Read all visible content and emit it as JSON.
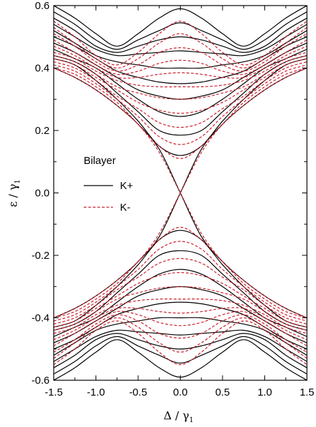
{
  "chart_data": {
    "type": "line",
    "title": "",
    "xlabel": "Δ / γ",
    "xlabel_sub": "1",
    "ylabel": "ε / γ",
    "ylabel_sub": "1",
    "xlim": [
      -1.5,
      1.5
    ],
    "ylim": [
      -0.6,
      0.6
    ],
    "xticks": [
      -1.5,
      -1.0,
      -0.5,
      0.0,
      0.5,
      1.0,
      1.5
    ],
    "xtick_labels": [
      "-1.5",
      "-1.0",
      "-0.5",
      "0.0",
      "0.5",
      "1.0",
      "1.5"
    ],
    "yticks": [
      -0.6,
      -0.4,
      -0.2,
      0.0,
      0.2,
      0.4,
      0.6
    ],
    "ytick_labels": [
      "-0.6",
      "-0.4",
      "-0.2",
      "0.0",
      "0.2",
      "0.4",
      "0.6"
    ],
    "grid": false,
    "legend": {
      "title": "Bilayer",
      "placement": "center-left",
      "entries": [
        "K+",
        "K-"
      ]
    },
    "x": [
      -1.5,
      -1.25,
      -1.0,
      -0.75,
      -0.5,
      -0.25,
      0.0,
      0.25,
      0.5,
      0.75,
      1.0,
      1.25,
      1.5
    ],
    "series": [
      {
        "label": "K+",
        "style": "solid",
        "color": "#000000",
        "y": [
          0.4,
          0.37,
          0.33,
          0.28,
          0.22,
          0.14,
          0.0,
          -0.14,
          -0.22,
          -0.28,
          -0.33,
          -0.37,
          -0.4
        ]
      },
      {
        "label": "K+",
        "style": "solid",
        "color": "#000000",
        "y": [
          -0.4,
          -0.37,
          -0.33,
          -0.28,
          -0.22,
          -0.14,
          0.0,
          0.14,
          0.22,
          0.28,
          0.33,
          0.37,
          0.4
        ]
      },
      {
        "label": "K-",
        "style": "dashed",
        "color": "#cc1f2d",
        "y": [
          0.4,
          0.37,
          0.33,
          0.28,
          0.22,
          0.13,
          0.0,
          -0.13,
          -0.22,
          -0.28,
          -0.33,
          -0.37,
          -0.4
        ]
      },
      {
        "label": "K-",
        "style": "dashed",
        "color": "#cc1f2d",
        "y": [
          -0.4,
          -0.37,
          -0.33,
          -0.28,
          -0.22,
          -0.13,
          0.0,
          0.13,
          0.22,
          0.28,
          0.33,
          0.37,
          0.4
        ]
      },
      {
        "label": "K+",
        "style": "solid",
        "color": "#000000",
        "y": [
          0.43,
          0.41,
          0.36,
          0.3,
          0.23,
          0.15,
          0.12,
          0.15,
          0.23,
          0.3,
          0.36,
          0.41,
          0.43
        ]
      },
      {
        "label": "K+",
        "style": "solid",
        "color": "#000000",
        "y": [
          0.44,
          0.42,
          0.38,
          0.32,
          0.26,
          0.2,
          0.185,
          0.2,
          0.26,
          0.32,
          0.38,
          0.42,
          0.44
        ]
      },
      {
        "label": "K+",
        "style": "solid",
        "color": "#000000",
        "y": [
          0.46,
          0.43,
          0.4,
          0.35,
          0.3,
          0.26,
          0.245,
          0.26,
          0.3,
          0.35,
          0.4,
          0.43,
          0.46
        ]
      },
      {
        "label": "K+",
        "style": "solid",
        "color": "#000000",
        "y": [
          0.48,
          0.45,
          0.41,
          0.37,
          0.33,
          0.31,
          0.3,
          0.31,
          0.33,
          0.37,
          0.41,
          0.45,
          0.48
        ]
      },
      {
        "label": "K+",
        "style": "solid",
        "color": "#000000",
        "y": [
          0.5,
          0.47,
          0.43,
          0.39,
          0.37,
          0.355,
          0.35,
          0.355,
          0.37,
          0.39,
          0.43,
          0.47,
          0.5
        ]
      },
      {
        "label": "K+",
        "style": "solid",
        "color": "#000000",
        "y": [
          0.52,
          0.48,
          0.44,
          0.42,
          0.41,
          0.4,
          0.4,
          0.4,
          0.41,
          0.42,
          0.44,
          0.48,
          0.52
        ]
      },
      {
        "label": "K+",
        "style": "solid",
        "color": "#000000",
        "y": [
          0.54,
          0.5,
          0.46,
          0.44,
          0.445,
          0.45,
          0.455,
          0.45,
          0.445,
          0.44,
          0.46,
          0.5,
          0.54
        ]
      },
      {
        "label": "K+",
        "style": "solid",
        "color": "#000000",
        "y": [
          0.56,
          0.52,
          0.47,
          0.45,
          0.47,
          0.49,
          0.5,
          0.49,
          0.47,
          0.45,
          0.47,
          0.52,
          0.56
        ]
      },
      {
        "label": "K+",
        "style": "solid",
        "color": "#000000",
        "y": [
          0.58,
          0.54,
          0.49,
          0.46,
          0.49,
          0.52,
          0.545,
          0.52,
          0.49,
          0.46,
          0.49,
          0.54,
          0.58
        ]
      },
      {
        "label": "K+",
        "style": "solid",
        "color": "#000000",
        "y": [
          0.6,
          0.56,
          0.51,
          0.47,
          0.51,
          0.56,
          0.59,
          0.56,
          0.51,
          0.47,
          0.51,
          0.56,
          0.6
        ]
      },
      {
        "label": "K+",
        "style": "solid",
        "color": "#000000",
        "y": [
          -0.43,
          -0.41,
          -0.36,
          -0.3,
          -0.23,
          -0.15,
          -0.12,
          -0.15,
          -0.23,
          -0.3,
          -0.36,
          -0.41,
          -0.43
        ]
      },
      {
        "label": "K+",
        "style": "solid",
        "color": "#000000",
        "y": [
          -0.44,
          -0.42,
          -0.38,
          -0.32,
          -0.26,
          -0.2,
          -0.185,
          -0.2,
          -0.26,
          -0.32,
          -0.38,
          -0.42,
          -0.44
        ]
      },
      {
        "label": "K+",
        "style": "solid",
        "color": "#000000",
        "y": [
          -0.46,
          -0.43,
          -0.4,
          -0.35,
          -0.3,
          -0.26,
          -0.245,
          -0.26,
          -0.3,
          -0.35,
          -0.4,
          -0.43,
          -0.46
        ]
      },
      {
        "label": "K+",
        "style": "solid",
        "color": "#000000",
        "y": [
          -0.48,
          -0.45,
          -0.41,
          -0.37,
          -0.33,
          -0.31,
          -0.3,
          -0.31,
          -0.33,
          -0.37,
          -0.41,
          -0.45,
          -0.48
        ]
      },
      {
        "label": "K+",
        "style": "solid",
        "color": "#000000",
        "y": [
          -0.5,
          -0.47,
          -0.43,
          -0.39,
          -0.37,
          -0.355,
          -0.35,
          -0.355,
          -0.37,
          -0.39,
          -0.43,
          -0.47,
          -0.5
        ]
      },
      {
        "label": "K+",
        "style": "solid",
        "color": "#000000",
        "y": [
          -0.52,
          -0.48,
          -0.44,
          -0.42,
          -0.41,
          -0.4,
          -0.4,
          -0.4,
          -0.41,
          -0.42,
          -0.44,
          -0.48,
          -0.52
        ]
      },
      {
        "label": "K+",
        "style": "solid",
        "color": "#000000",
        "y": [
          -0.54,
          -0.5,
          -0.46,
          -0.44,
          -0.445,
          -0.45,
          -0.455,
          -0.45,
          -0.445,
          -0.44,
          -0.46,
          -0.5,
          -0.54
        ]
      },
      {
        "label": "K+",
        "style": "solid",
        "color": "#000000",
        "y": [
          -0.56,
          -0.52,
          -0.47,
          -0.45,
          -0.47,
          -0.49,
          -0.5,
          -0.49,
          -0.47,
          -0.45,
          -0.47,
          -0.52,
          -0.56
        ]
      },
      {
        "label": "K+",
        "style": "solid",
        "color": "#000000",
        "y": [
          -0.58,
          -0.54,
          -0.49,
          -0.46,
          -0.49,
          -0.52,
          -0.545,
          -0.52,
          -0.49,
          -0.46,
          -0.49,
          -0.54,
          -0.58
        ]
      },
      {
        "label": "K+",
        "style": "solid",
        "color": "#000000",
        "y": [
          -0.6,
          -0.56,
          -0.51,
          -0.47,
          -0.51,
          -0.56,
          -0.59,
          -0.56,
          -0.51,
          -0.47,
          -0.51,
          -0.56,
          -0.6
        ]
      },
      {
        "label": "K-",
        "style": "dashed",
        "color": "#cc1f2d",
        "y": [
          0.4,
          0.38,
          0.34,
          0.29,
          0.22,
          0.15,
          0.11,
          0.15,
          0.22,
          0.29,
          0.34,
          0.38,
          0.4
        ]
      },
      {
        "label": "K-",
        "style": "dashed",
        "color": "#cc1f2d",
        "y": [
          0.41,
          0.39,
          0.35,
          0.3,
          0.245,
          0.18,
          0.155,
          0.18,
          0.245,
          0.3,
          0.35,
          0.39,
          0.41
        ]
      },
      {
        "label": "K-",
        "style": "dashed",
        "color": "#cc1f2d",
        "y": [
          0.42,
          0.4,
          0.36,
          0.31,
          0.27,
          0.225,
          0.21,
          0.225,
          0.27,
          0.31,
          0.36,
          0.4,
          0.42
        ]
      },
      {
        "label": "K-",
        "style": "dashed",
        "color": "#cc1f2d",
        "y": [
          0.43,
          0.41,
          0.37,
          0.33,
          0.29,
          0.265,
          0.255,
          0.265,
          0.29,
          0.33,
          0.37,
          0.41,
          0.43
        ]
      },
      {
        "label": "K-",
        "style": "dashed",
        "color": "#cc1f2d",
        "y": [
          0.44,
          0.42,
          0.38,
          0.34,
          0.32,
          0.305,
          0.3,
          0.305,
          0.32,
          0.34,
          0.38,
          0.42,
          0.44
        ]
      },
      {
        "label": "K-",
        "style": "dashed",
        "color": "#cc1f2d",
        "y": [
          0.45,
          0.43,
          0.39,
          0.36,
          0.345,
          0.34,
          0.34,
          0.34,
          0.345,
          0.36,
          0.39,
          0.43,
          0.45
        ]
      },
      {
        "label": "K-",
        "style": "dashed",
        "color": "#cc1f2d",
        "y": [
          0.47,
          0.44,
          0.4,
          0.37,
          0.37,
          0.38,
          0.385,
          0.38,
          0.37,
          0.37,
          0.4,
          0.44,
          0.47
        ]
      },
      {
        "label": "K-",
        "style": "dashed",
        "color": "#cc1f2d",
        "y": [
          0.49,
          0.45,
          0.41,
          0.38,
          0.39,
          0.415,
          0.425,
          0.415,
          0.39,
          0.38,
          0.41,
          0.45,
          0.49
        ]
      },
      {
        "label": "K-",
        "style": "dashed",
        "color": "#cc1f2d",
        "y": [
          0.51,
          0.47,
          0.42,
          0.39,
          0.41,
          0.45,
          0.465,
          0.45,
          0.41,
          0.39,
          0.42,
          0.47,
          0.51
        ]
      },
      {
        "label": "K-",
        "style": "dashed",
        "color": "#cc1f2d",
        "y": [
          0.53,
          0.48,
          0.43,
          0.4,
          0.43,
          0.48,
          0.51,
          0.48,
          0.43,
          0.4,
          0.43,
          0.48,
          0.53
        ]
      },
      {
        "label": "K-",
        "style": "dashed",
        "color": "#cc1f2d",
        "y": [
          0.55,
          0.5,
          0.44,
          0.41,
          0.45,
          0.51,
          0.55,
          0.51,
          0.45,
          0.41,
          0.44,
          0.5,
          0.55
        ]
      },
      {
        "label": "K-",
        "style": "dashed",
        "color": "#cc1f2d",
        "y": [
          -0.4,
          -0.38,
          -0.34,
          -0.29,
          -0.22,
          -0.15,
          -0.11,
          -0.15,
          -0.22,
          -0.29,
          -0.34,
          -0.38,
          -0.4
        ]
      },
      {
        "label": "K-",
        "style": "dashed",
        "color": "#cc1f2d",
        "y": [
          -0.41,
          -0.39,
          -0.35,
          -0.3,
          -0.245,
          -0.18,
          -0.155,
          -0.18,
          -0.245,
          -0.3,
          -0.35,
          -0.39,
          -0.41
        ]
      },
      {
        "label": "K-",
        "style": "dashed",
        "color": "#cc1f2d",
        "y": [
          -0.42,
          -0.4,
          -0.36,
          -0.31,
          -0.27,
          -0.225,
          -0.21,
          -0.225,
          -0.27,
          -0.31,
          -0.36,
          -0.4,
          -0.42
        ]
      },
      {
        "label": "K-",
        "style": "dashed",
        "color": "#cc1f2d",
        "y": [
          -0.43,
          -0.41,
          -0.37,
          -0.33,
          -0.29,
          -0.265,
          -0.255,
          -0.265,
          -0.29,
          -0.33,
          -0.37,
          -0.41,
          -0.43
        ]
      },
      {
        "label": "K-",
        "style": "dashed",
        "color": "#cc1f2d",
        "y": [
          -0.44,
          -0.42,
          -0.38,
          -0.34,
          -0.32,
          -0.305,
          -0.3,
          -0.305,
          -0.32,
          -0.34,
          -0.38,
          -0.42,
          -0.44
        ]
      },
      {
        "label": "K-",
        "style": "dashed",
        "color": "#cc1f2d",
        "y": [
          -0.45,
          -0.43,
          -0.39,
          -0.36,
          -0.345,
          -0.34,
          -0.34,
          -0.34,
          -0.345,
          -0.36,
          -0.39,
          -0.43,
          -0.45
        ]
      },
      {
        "label": "K-",
        "style": "dashed",
        "color": "#cc1f2d",
        "y": [
          -0.47,
          -0.44,
          -0.4,
          -0.37,
          -0.37,
          -0.38,
          -0.385,
          -0.38,
          -0.37,
          -0.37,
          -0.4,
          -0.44,
          -0.47
        ]
      },
      {
        "label": "K-",
        "style": "dashed",
        "color": "#cc1f2d",
        "y": [
          -0.49,
          -0.45,
          -0.41,
          -0.38,
          -0.39,
          -0.415,
          -0.425,
          -0.415,
          -0.39,
          -0.38,
          -0.41,
          -0.45,
          -0.49
        ]
      },
      {
        "label": "K-",
        "style": "dashed",
        "color": "#cc1f2d",
        "y": [
          -0.51,
          -0.47,
          -0.42,
          -0.39,
          -0.41,
          -0.45,
          -0.465,
          -0.45,
          -0.41,
          -0.39,
          -0.42,
          -0.47,
          -0.51
        ]
      },
      {
        "label": "K-",
        "style": "dashed",
        "color": "#cc1f2d",
        "y": [
          -0.53,
          -0.48,
          -0.43,
          -0.4,
          -0.43,
          -0.48,
          -0.51,
          -0.48,
          -0.43,
          -0.4,
          -0.43,
          -0.48,
          -0.53
        ]
      },
      {
        "label": "K-",
        "style": "dashed",
        "color": "#cc1f2d",
        "y": [
          -0.55,
          -0.5,
          -0.44,
          -0.41,
          -0.45,
          -0.51,
          -0.55,
          -0.51,
          -0.45,
          -0.41,
          -0.44,
          -0.5,
          -0.55
        ]
      }
    ]
  }
}
